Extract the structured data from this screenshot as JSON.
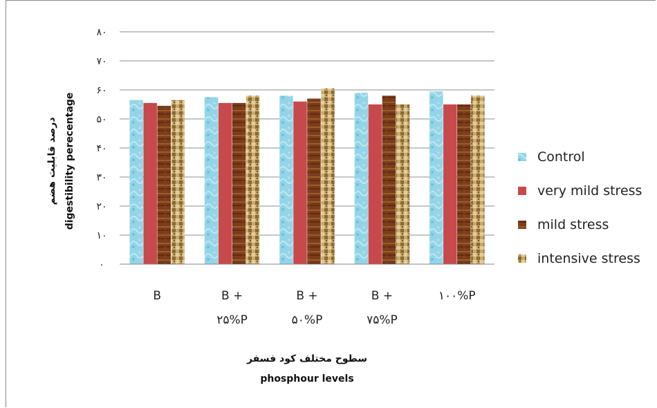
{
  "chart_data": {
    "type": "bar",
    "title": "",
    "ylabel_lines": [
      "درصد قابلیت هضم",
      "digestibility perecentage"
    ],
    "xlabel_lines": [
      "سطوح مختلف  کود فسفر",
      "phosphour levels"
    ],
    "ylim": [
      0,
      80
    ],
    "yticks": [
      0,
      10,
      20,
      30,
      40,
      50,
      60,
      70,
      80
    ],
    "ytick_labels": [
      "۰",
      "۱۰",
      "۲۰",
      "۳۰",
      "۴۰",
      "۵۰",
      "۶۰",
      "۷۰",
      "۸۰"
    ],
    "grid": true,
    "legend_position": "right",
    "categories": [
      [
        "B"
      ],
      [
        "B +",
        "۲۵%P"
      ],
      [
        "B +",
        "۵۰%P"
      ],
      [
        "B +",
        "۷۵%P"
      ],
      [
        "۱۰۰%P"
      ]
    ],
    "series": [
      {
        "name": "Control",
        "color": "#8fd3e6",
        "values": [
          56.5,
          57.5,
          58,
          59,
          59.5
        ]
      },
      {
        "name": "very mild stress",
        "color": "#c8494b",
        "values": [
          55.5,
          55.5,
          56,
          55,
          55
        ]
      },
      {
        "name": "mild stress",
        "color": "#7a3b1a",
        "values": [
          54.5,
          55.5,
          57,
          58,
          55
        ]
      },
      {
        "name": "intensive stress",
        "color": "#c9a86a",
        "values": [
          56.5,
          58,
          60.5,
          55,
          58
        ]
      }
    ]
  }
}
